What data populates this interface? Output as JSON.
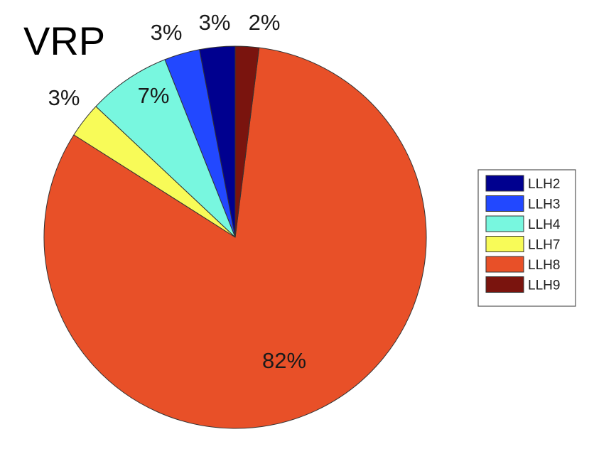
{
  "chart_data": {
    "type": "pie",
    "title": "VRP",
    "start": "top",
    "direction": "counterclockwise",
    "legend_placement": "right",
    "slices": [
      {
        "name": "LLH2",
        "value": 3,
        "label": "3%",
        "color": "#00008f"
      },
      {
        "name": "LLH3",
        "value": 3,
        "label": "3%",
        "color": "#2248ff"
      },
      {
        "name": "LLH4",
        "value": 7,
        "label": "7%",
        "color": "#78f7df"
      },
      {
        "name": "LLH7",
        "value": 3,
        "label": "3%",
        "color": "#f8fb58"
      },
      {
        "name": "LLH8",
        "value": 82,
        "label": "82%",
        "color": "#e85028"
      },
      {
        "name": "LLH9",
        "value": 2,
        "label": "2%",
        "color": "#7a140e"
      }
    ]
  }
}
